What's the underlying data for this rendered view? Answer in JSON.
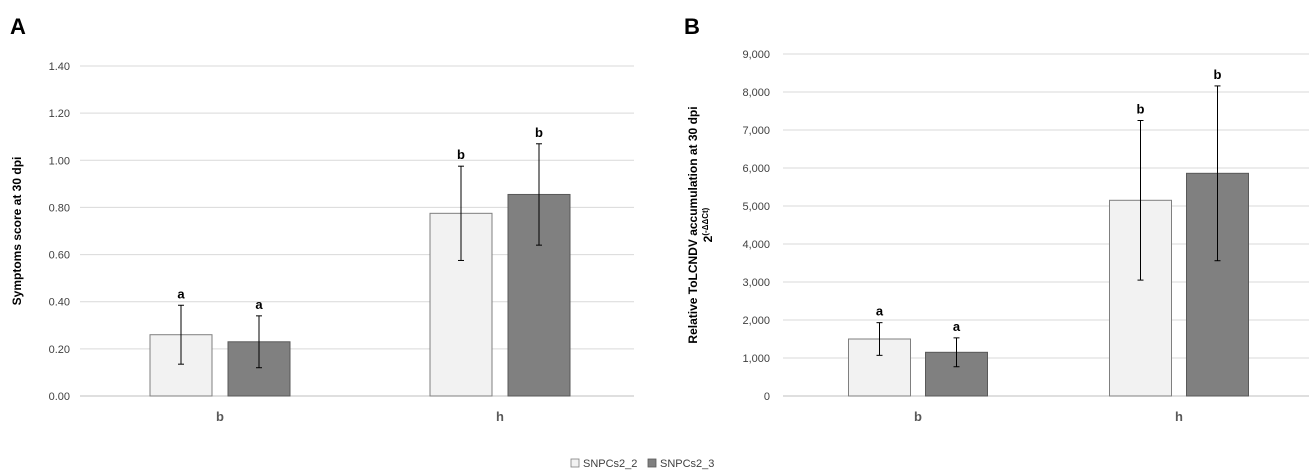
{
  "legend": [
    {
      "name": "SNPCs2_2",
      "color": "#f2f2f2"
    },
    {
      "name": "SNPCs2_3",
      "color": "#808080"
    }
  ],
  "chart_data": [
    {
      "type": "bar",
      "panel": "A",
      "categories": [
        "b",
        "h"
      ],
      "ylabel": "Symptoms score at 30 dpi",
      "ylabel_sup": "",
      "ylim": [
        0,
        1.4
      ],
      "yticks": [
        "0.00",
        "0.20",
        "0.40",
        "0.60",
        "0.80",
        "1.00",
        "1.20",
        "1.40"
      ],
      "series": [
        {
          "name": "SNPCs2_2",
          "values": [
            0.26,
            0.775
          ],
          "errors": [
            0.125,
            0.2
          ],
          "sig": [
            "a",
            "b"
          ]
        },
        {
          "name": "SNPCs2_3",
          "values": [
            0.23,
            0.855
          ],
          "errors": [
            0.11,
            0.215
          ],
          "sig": [
            "a",
            "b"
          ]
        }
      ]
    },
    {
      "type": "bar",
      "panel": "B",
      "categories": [
        "b",
        "h"
      ],
      "ylabel": "Relative ToLCNDV accumulation at 30 dpi",
      "ylabel_sup": "2",
      "ylabel_sup2": "(-ΔΔCt)",
      "ylim": [
        0,
        9000
      ],
      "yticks": [
        "0",
        "1,000",
        "2,000",
        "3,000",
        "4,000",
        "5,000",
        "6,000",
        "7,000",
        "8,000",
        "9,000"
      ],
      "series": [
        {
          "name": "SNPCs2_2",
          "values": [
            1500,
            5150
          ],
          "errors": [
            430,
            2100
          ],
          "sig": [
            "a",
            "b"
          ]
        },
        {
          "name": "SNPCs2_3",
          "values": [
            1150,
            5860
          ],
          "errors": [
            380,
            2300
          ],
          "sig": [
            "a",
            "b"
          ]
        }
      ]
    }
  ]
}
